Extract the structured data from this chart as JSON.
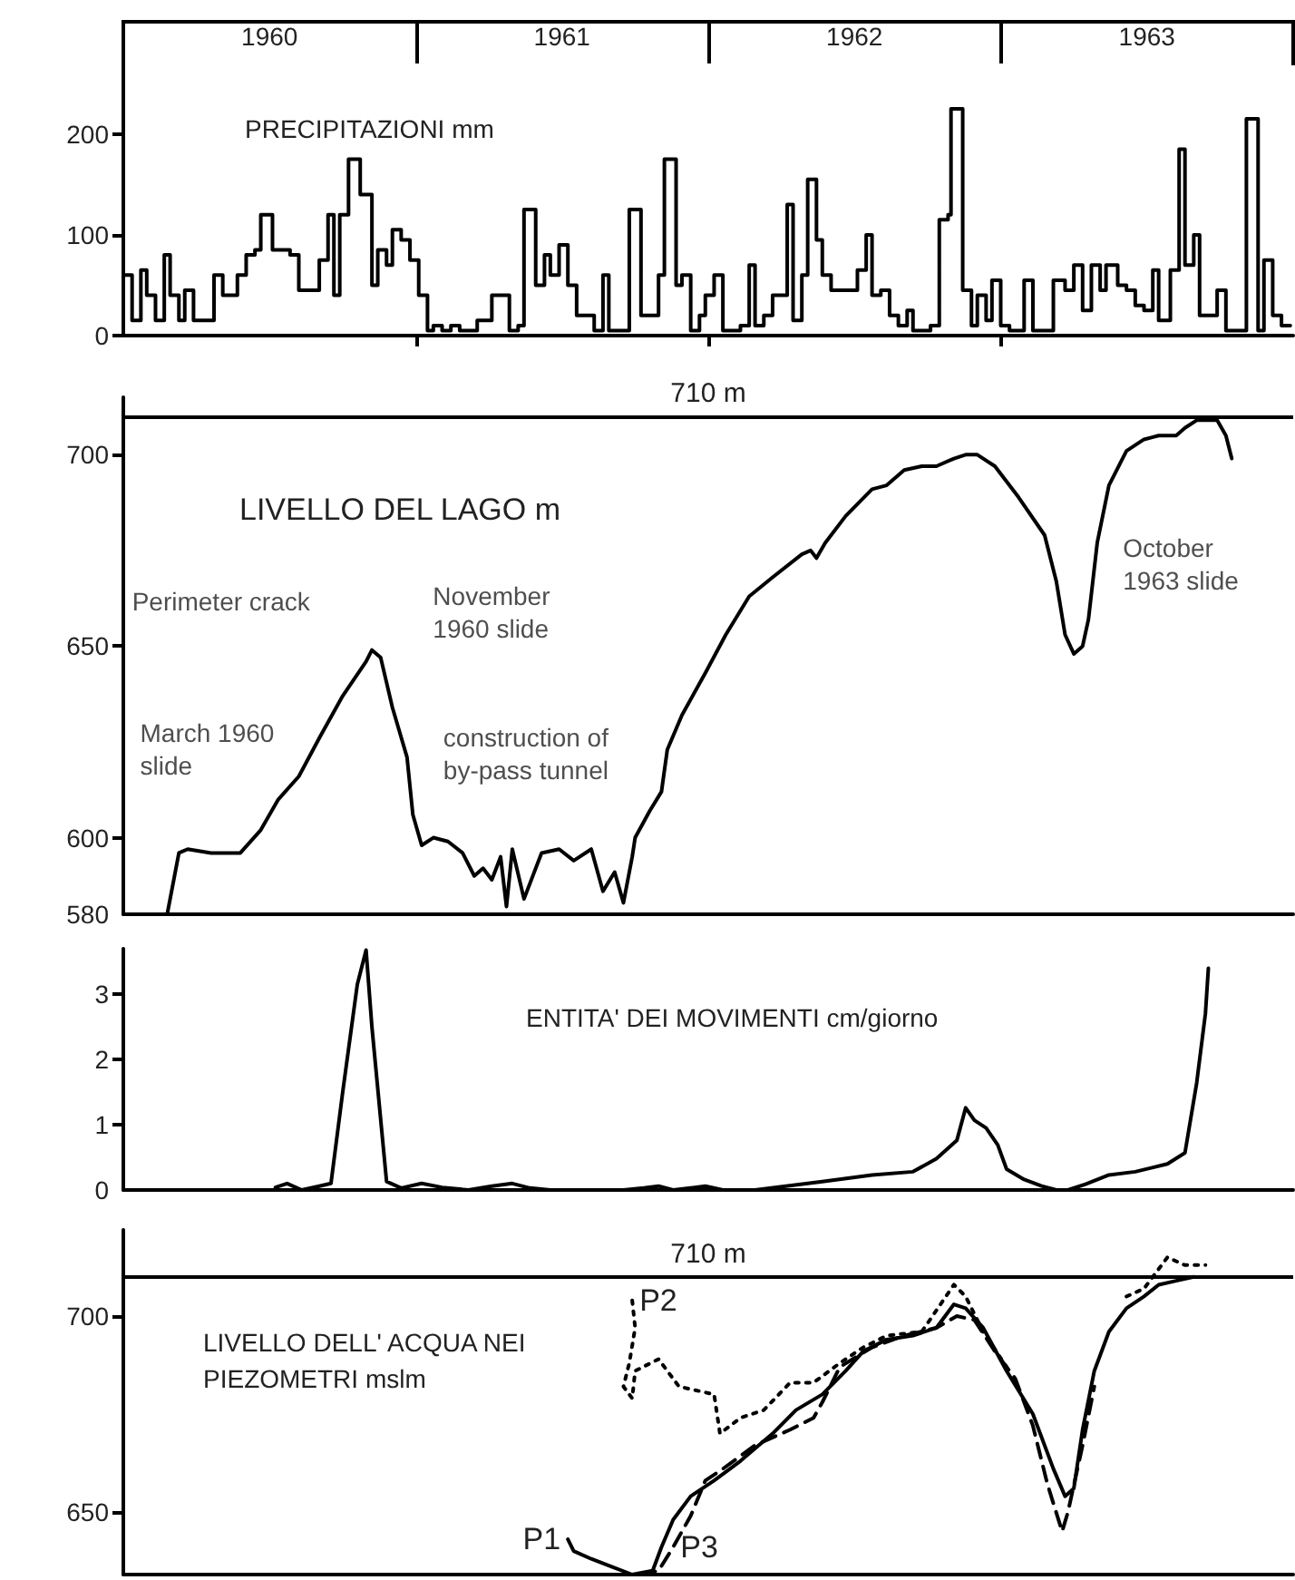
{
  "chart_data": [
    {
      "type": "step",
      "title": "PRECIPITAZIONI mm",
      "color": "#000000",
      "x": [
        1960.0,
        1960.03,
        1960.06,
        1960.08,
        1960.11,
        1960.14,
        1960.16,
        1960.19,
        1960.21,
        1960.24,
        1960.28,
        1960.31,
        1960.34,
        1960.37,
        1960.39,
        1960.42,
        1960.45,
        1960.47,
        1960.51,
        1960.54,
        1960.57,
        1960.6,
        1960.64,
        1960.67,
        1960.7,
        1960.72,
        1960.74,
        1960.77,
        1960.79,
        1960.81,
        1960.85,
        1960.87,
        1960.9,
        1960.92,
        1960.95,
        1960.98,
        1961.01,
        1961.04,
        1961.06,
        1961.09,
        1961.12,
        1961.15,
        1961.18,
        1961.21,
        1961.23,
        1961.26,
        1961.3,
        1961.32,
        1961.35,
        1961.37,
        1961.41,
        1961.44,
        1961.46,
        1961.49,
        1961.52,
        1961.55,
        1961.58,
        1961.61,
        1961.64,
        1961.66,
        1961.7,
        1961.73,
        1961.77,
        1961.8,
        1961.83,
        1961.85,
        1961.89,
        1961.91,
        1961.94,
        1961.97,
        1961.99,
        1962.02,
        1962.05,
        1962.08,
        1962.11,
        1962.14,
        1962.16,
        1962.19,
        1962.22,
        1962.25,
        1962.27,
        1962.29,
        1962.32,
        1962.34,
        1962.37,
        1962.39,
        1962.42,
        1962.45,
        1962.48,
        1962.51,
        1962.54,
        1962.56,
        1962.59,
        1962.62,
        1962.65,
        1962.68,
        1962.7,
        1962.73,
        1962.76,
        1962.79,
        1962.82,
        1962.83,
        1962.87,
        1962.9,
        1962.92,
        1962.95,
        1962.97,
        1963.0,
        1963.03,
        1963.06,
        1963.08,
        1963.11,
        1963.15,
        1963.18,
        1963.22,
        1963.25,
        1963.28,
        1963.31,
        1963.34,
        1963.36,
        1963.4,
        1963.43,
        1963.46,
        1963.49,
        1963.52,
        1963.54,
        1963.58,
        1963.61,
        1963.63,
        1963.66,
        1963.68,
        1963.71,
        1963.74,
        1963.77,
        1963.81,
        1963.84,
        1963.88,
        1963.9,
        1963.93,
        1963.96,
        1963.99
      ],
      "values": [
        60,
        15,
        65,
        40,
        15,
        80,
        40,
        15,
        45,
        15,
        15,
        60,
        40,
        40,
        60,
        80,
        85,
        120,
        85,
        85,
        80,
        45,
        45,
        75,
        120,
        40,
        120,
        175,
        175,
        140,
        50,
        85,
        70,
        105,
        95,
        75,
        40,
        5,
        10,
        5,
        10,
        5,
        5,
        15,
        15,
        40,
        40,
        5,
        10,
        125,
        50,
        80,
        60,
        90,
        50,
        20,
        20,
        5,
        60,
        5,
        5,
        125,
        20,
        20,
        60,
        175,
        50,
        60,
        5,
        20,
        40,
        60,
        5,
        5,
        10,
        70,
        10,
        20,
        40,
        40,
        130,
        15,
        60,
        155,
        95,
        60,
        45,
        45,
        45,
        65,
        100,
        40,
        45,
        20,
        10,
        25,
        5,
        5,
        10,
        115,
        120,
        225,
        45,
        10,
        40,
        15,
        55,
        10,
        5,
        5,
        55,
        5,
        5,
        55,
        45,
        70,
        25,
        70,
        45,
        70,
        50,
        45,
        30,
        25,
        65,
        15,
        65,
        185,
        70,
        100,
        20,
        20,
        45,
        5,
        5,
        215,
        5,
        75,
        20,
        10,
        10
      ],
      "xlim": [
        1960,
        1964
      ],
      "xticks": [
        {
          "value": 1960.5,
          "label": "1960"
        },
        {
          "value": 1961,
          "label": null
        },
        {
          "value": 1961.5,
          "label": "1961"
        },
        {
          "value": 1962,
          "label": null
        },
        {
          "value": 1962.5,
          "label": "1962"
        },
        {
          "value": 1963,
          "label": null
        },
        {
          "value": 1963.5,
          "label": "1963"
        }
      ],
      "ylim": [
        0,
        270
      ],
      "yticks": [
        0,
        100,
        200
      ]
    },
    {
      "type": "line",
      "title": "LIVELLO DEL LAGO m",
      "color": "#000000",
      "tick_labels": "y",
      "x": [
        1960.15,
        1960.19,
        1960.22,
        1960.3,
        1960.4,
        1960.47,
        1960.53,
        1960.6,
        1960.67,
        1960.75,
        1960.83,
        1960.85,
        1960.88,
        1960.92,
        1960.97,
        1960.99,
        1961.02,
        1961.06,
        1961.11,
        1961.16,
        1961.2,
        1961.23,
        1961.26,
        1961.29,
        1961.31,
        1961.33,
        1961.37,
        1961.43,
        1961.49,
        1961.54,
        1961.6,
        1961.64,
        1961.68,
        1961.71,
        1961.74,
        1961.75,
        1961.8,
        1961.84,
        1961.86,
        1961.91,
        1961.99,
        1962.06,
        1962.14,
        1962.22,
        1962.32,
        1962.35,
        1962.37,
        1962.4,
        1962.47,
        1962.56,
        1962.61,
        1962.67,
        1962.73,
        1962.78,
        1962.84,
        1962.88,
        1962.92,
        1962.98,
        1963.06,
        1963.15,
        1963.19,
        1963.22,
        1963.25,
        1963.28,
        1963.3,
        1963.33,
        1963.37,
        1963.43,
        1963.49,
        1963.54,
        1963.6,
        1963.63,
        1963.67,
        1963.71,
        1963.74,
        1963.77,
        1963.79
      ],
      "values": [
        580,
        596,
        597,
        596,
        596,
        602,
        610,
        616,
        626,
        637,
        646,
        649,
        647,
        634,
        621,
        606,
        598,
        600,
        599,
        596,
        590,
        592,
        589,
        595,
        582,
        597,
        584,
        596,
        597,
        594,
        597,
        586,
        591,
        583,
        595,
        600,
        607,
        612,
        623,
        632,
        643,
        653,
        663,
        668,
        674,
        675,
        673,
        677,
        684,
        691,
        692,
        696,
        697,
        697,
        699,
        700,
        700,
        697,
        689,
        679,
        667,
        653,
        648,
        650,
        657,
        677,
        692,
        701,
        704,
        705,
        705,
        707,
        709,
        709,
        709,
        705,
        699
      ],
      "xlim": [
        1960,
        1964
      ],
      "ylim": [
        580,
        715
      ],
      "yticks": [
        580,
        600,
        650,
        700
      ],
      "ref_lines": [
        {
          "axis": "y",
          "value": 710,
          "label": "710 m"
        }
      ],
      "annotations": [
        {
          "text": "March 1960 slide",
          "x": 1960.2,
          "y": 597
        },
        {
          "text": "Perimeter crack",
          "x": 1960.83,
          "y": 648
        },
        {
          "text": "November 1960 slide",
          "x": 1960.86,
          "y": 649
        },
        {
          "text": "construction of by-pass tunnel",
          "x": 1960.97,
          "y": 621
        },
        {
          "text": "October 1963 slide",
          "x": 1963.79,
          "y": 699
        }
      ]
    },
    {
      "type": "line",
      "title": "ENTITA' DEI MOVIMENTI cm/giorno",
      "color": "#000000",
      "tick_labels": "y",
      "x": [
        1960.52,
        1960.56,
        1960.61,
        1960.67,
        1960.71,
        1960.75,
        1960.8,
        1960.83,
        1960.85,
        1960.9,
        1960.95,
        1961.02,
        1961.09,
        1961.18,
        1961.26,
        1961.33,
        1961.39,
        1961.46,
        1961.54,
        1961.71,
        1961.78,
        1961.83,
        1961.88,
        1961.94,
        1961.99,
        1962.05,
        1962.16,
        1962.39,
        1962.56,
        1962.7,
        1962.78,
        1962.85,
        1962.88,
        1962.91,
        1962.95,
        1962.99,
        1963.02,
        1963.08,
        1963.14,
        1963.19,
        1963.23,
        1963.29,
        1963.37,
        1963.46,
        1963.57,
        1963.63,
        1963.67,
        1963.7,
        1963.71
      ],
      "values": [
        0.04,
        0.1,
        0,
        0.06,
        0.1,
        1.5,
        3.15,
        3.68,
        2.5,
        0.13,
        0.03,
        0.1,
        0.04,
        0,
        0.06,
        0.1,
        0.03,
        0,
        0,
        0,
        0.03,
        0.06,
        0,
        0.03,
        0.06,
        0,
        0,
        0.13,
        0.23,
        0.28,
        0.48,
        0.76,
        1.26,
        1.07,
        0.95,
        0.69,
        0.32,
        0.16,
        0.06,
        0,
        0,
        0.09,
        0.23,
        0.28,
        0.4,
        0.57,
        1.64,
        2.71,
        3.4
      ],
      "xlim": [
        1960,
        1964
      ],
      "ylim": [
        0,
        3.7
      ],
      "yticks": [
        0,
        1,
        2,
        3
      ]
    },
    {
      "type": "line",
      "title": "LIVELLO DELL' ACQUA NEI PIEZOMETRI mslm",
      "tick_labels": "y",
      "series": [
        {
          "name": "P1",
          "color": "#000000",
          "line_style": "solid",
          "x": [
            1961.52,
            1961.54,
            1961.6,
            1961.67,
            1961.74,
            1961.81,
            1961.84,
            1961.88,
            1961.94,
            1962.02,
            1962.11,
            1962.22,
            1962.3,
            1962.39,
            1962.47,
            1962.53,
            1962.61,
            1962.7,
            1962.78,
            1962.84,
            1962.88,
            1962.94,
            1963.02,
            1963.11,
            1963.18,
            1963.22,
            1963.25,
            1963.28,
            1963.32,
            1963.37,
            1963.43,
            1963.49,
            1963.54,
            1963.6,
            1963.66
          ],
          "values": [
            643,
            640,
            638,
            636,
            634,
            635,
            641,
            648,
            654,
            658,
            663,
            670,
            676,
            680,
            686,
            691,
            694,
            695,
            697,
            703,
            702,
            697,
            686,
            675,
            661,
            654,
            656,
            671,
            686,
            696,
            702,
            705,
            708,
            709,
            710
          ]
        },
        {
          "name": "P2",
          "color": "#000000",
          "line_style": "dotted",
          "x": [
            1961.74,
            1961.75,
            1961.73,
            1961.71,
            1961.74,
            1961.75,
            1961.83,
            1961.9,
            1962.02,
            1962.04,
            1962.11,
            1962.19,
            1962.28,
            1962.36,
            1962.45,
            1962.53,
            1962.61,
            1962.73,
            1962.84,
            1962.88,
            1962.94,
            1963.02,
            1963.2,
            1963.43,
            1963.49,
            1963.57,
            1963.63,
            1963.7
          ],
          "values": [
            704,
            697,
            688,
            682,
            679,
            686,
            689,
            682,
            680,
            670,
            674,
            676,
            683,
            683,
            688,
            692,
            695,
            696,
            708,
            705,
            696,
            687,
            null,
            705,
            707,
            715,
            713,
            713
          ]
        },
        {
          "name": "P3",
          "color": "#000000",
          "line_style": "dashed",
          "x": [
            1961.77,
            1961.83,
            1961.88,
            1961.94,
            1961.99,
            1962.05,
            1962.16,
            1962.28,
            1962.36,
            1962.39,
            1962.45,
            1962.56,
            1962.67,
            1962.78,
            1962.85,
            1962.91,
            1962.98,
            1963.05,
            1963.11,
            1963.16,
            1963.21,
            1963.23,
            1963.28,
            1963.32
          ],
          "values": [
            634,
            635,
            641,
            649,
            658,
            661,
            667,
            671,
            674,
            678,
            687,
            692,
            695,
            697,
            700,
            699,
            691,
            684,
            672,
            657,
            645,
            650,
            667,
            682
          ]
        }
      ],
      "xlim": [
        1960,
        1964
      ],
      "ylim": [
        634,
        722
      ],
      "yticks": [
        650,
        700
      ],
      "ref_lines": [
        {
          "axis": "y",
          "value": 710,
          "label": "710 m"
        }
      ]
    }
  ]
}
